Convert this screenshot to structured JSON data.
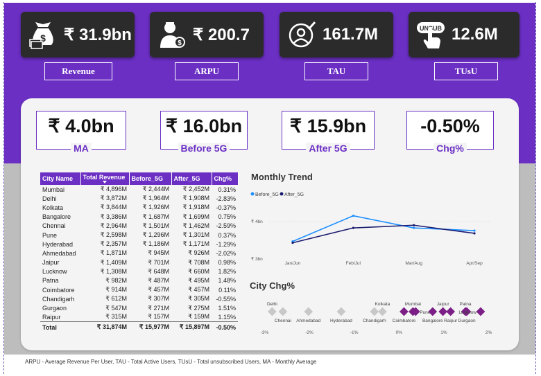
{
  "kpis": [
    {
      "value": "₹ 31.9bn",
      "label": "Revenue",
      "icon": "money-bag-icon"
    },
    {
      "value": "₹ 200.7",
      "label": "ARPU",
      "icon": "user-coin-icon"
    },
    {
      "value": "161.7M",
      "label": "TAU",
      "icon": "user-check-icon"
    },
    {
      "value": "12.6M",
      "label": "TUsU",
      "icon": "unsubscribe-icon",
      "icon_text": "UNSUB"
    }
  ],
  "summary": [
    {
      "value": "₹ 4.0bn",
      "label": "MA"
    },
    {
      "value": "₹ 16.0bn",
      "label": "Before 5G"
    },
    {
      "value": "₹ 15.9bn",
      "label": "After 5G"
    },
    {
      "value": "-0.50%",
      "label": "Chg%"
    }
  ],
  "table": {
    "headers": [
      "City Name",
      "Total Revenue",
      "Before_5G",
      "After_5G",
      "Chg%"
    ],
    "rows": [
      [
        "Mumbai",
        "₹ 4,896M",
        "₹ 2,444M",
        "₹ 2,452M",
        "0.31%"
      ],
      [
        "Delhi",
        "₹ 3,872M",
        "₹ 1,964M",
        "₹ 1,908M",
        "-2.83%"
      ],
      [
        "Kolkata",
        "₹ 3,844M",
        "₹ 1,926M",
        "₹ 1,918M",
        "-0.37%"
      ],
      [
        "Bangalore",
        "₹ 3,386M",
        "₹ 1,687M",
        "₹ 1,699M",
        "0.75%"
      ],
      [
        "Chennai",
        "₹ 2,964M",
        "₹ 1,501M",
        "₹ 1,462M",
        "-2.59%"
      ],
      [
        "Pune",
        "₹ 2,598M",
        "₹ 1,296M",
        "₹ 1,301M",
        "0.37%"
      ],
      [
        "Hyderabad",
        "₹ 2,357M",
        "₹ 1,186M",
        "₹ 1,171M",
        "-1.29%"
      ],
      [
        "Ahmedabad",
        "₹ 1,871M",
        "₹ 945M",
        "₹ 926M",
        "-2.02%"
      ],
      [
        "Jaipur",
        "₹ 1,409M",
        "₹ 701M",
        "₹ 708M",
        "0.98%"
      ],
      [
        "Lucknow",
        "₹ 1,308M",
        "₹ 648M",
        "₹ 660M",
        "1.82%"
      ],
      [
        "Patna",
        "₹ 982M",
        "₹ 487M",
        "₹ 495M",
        "1.48%"
      ],
      [
        "Coimbatore",
        "₹ 914M",
        "₹ 457M",
        "₹ 457M",
        "0.11%"
      ],
      [
        "Chandigarh",
        "₹ 612M",
        "₹ 307M",
        "₹ 305M",
        "-0.55%"
      ],
      [
        "Gurgaon",
        "₹ 547M",
        "₹ 271M",
        "₹ 275M",
        "1.51%"
      ],
      [
        "Raipur",
        "₹ 315M",
        "₹ 157M",
        "₹ 159M",
        "1.15%"
      ]
    ],
    "total": [
      "Total",
      "₹ 31,874M",
      "₹ 15,977M",
      "₹ 15,897M",
      "-0.50%"
    ]
  },
  "chart_data": [
    {
      "type": "line",
      "title": "Monthly Trend",
      "categories": [
        "Jan/Jun",
        "Feb/Jul",
        "Mar/Aug",
        "Apr/Sep"
      ],
      "series": [
        {
          "name": "Before_5G",
          "values": [
            3.93,
            4.12,
            4.03,
            4.01
          ],
          "color": "#1e90ff"
        },
        {
          "name": "After_5G",
          "values": [
            3.92,
            4.03,
            4.05,
            3.99
          ],
          "color": "#1a1a6e"
        }
      ],
      "yticks": [
        "₹ 4bn",
        "₹ 3bn"
      ],
      "ylim": [
        3.8,
        4.2
      ],
      "legend": "top-left"
    },
    {
      "type": "scatter",
      "title": "City Chg%",
      "xticks": [
        "-3%",
        "-2%",
        "-1%",
        "0%",
        "1%",
        "2%"
      ],
      "xlim": [
        -3.3,
        2.3
      ],
      "points": [
        {
          "city": "Delhi",
          "chg": -2.83,
          "pos": "above"
        },
        {
          "city": "Chennai",
          "chg": -2.59,
          "pos": "below"
        },
        {
          "city": "Ahmedabad",
          "chg": -2.02,
          "pos": "below"
        },
        {
          "city": "Hyderabad",
          "chg": -1.29,
          "pos": "below"
        },
        {
          "city": "Chandigarh",
          "chg": -0.55,
          "pos": "below"
        },
        {
          "city": "Kolkata",
          "chg": -0.37,
          "pos": "above"
        },
        {
          "city": "Coimbatore",
          "chg": 0.11,
          "pos": "below"
        },
        {
          "city": "Mumbai",
          "chg": 0.31,
          "pos": "above"
        },
        {
          "city": "Pune",
          "chg": 0.37,
          "pos": "right"
        },
        {
          "city": "Bangalore",
          "chg": 0.75,
          "pos": "below"
        },
        {
          "city": "Jaipur",
          "chg": 0.98,
          "pos": "above"
        },
        {
          "city": "Raipur",
          "chg": 1.15,
          "pos": "below"
        },
        {
          "city": "Patna",
          "chg": 1.48,
          "pos": "above"
        },
        {
          "city": "Gurgaon",
          "chg": 1.51,
          "pos": "below"
        },
        {
          "city": "Lucknow",
          "chg": 1.82,
          "pos": "left"
        }
      ],
      "neutral_color": "#c8c8c8",
      "positive_color": "#7b1f86"
    }
  ],
  "footer": "ARPU - Average Revenue Per User, TAU - Total Active Users, TUsU - Total unsubscribed Users, MA - Monthly Average",
  "colors": {
    "brand": "#6b2fc4",
    "card": "#2b2b2b"
  }
}
